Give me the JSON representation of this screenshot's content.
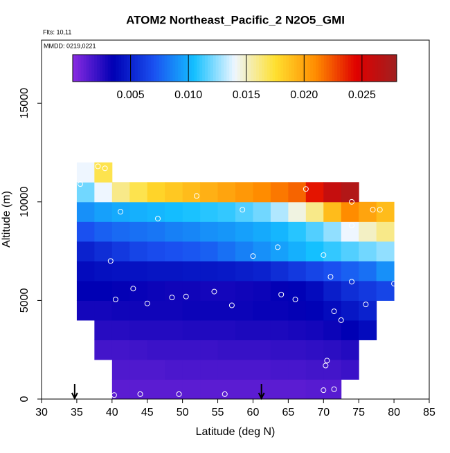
{
  "chart_data": {
    "type": "heatmap",
    "title": "ATOM2 Northeast_Pacific_2 N2O5_GMI",
    "flights_text": "Flts: 10,11",
    "dates_text": "MMDD: 0219,0221",
    "xlabel": "Latitude (deg N)",
    "ylabel": "Altitude (m)",
    "xlim": [
      30,
      85
    ],
    "ylim": [
      0,
      18200
    ],
    "xticks": [
      30,
      35,
      40,
      45,
      50,
      55,
      60,
      65,
      70,
      75,
      80,
      85
    ],
    "yticks": [
      0,
      5000,
      10000,
      15000
    ],
    "x": [
      36.25,
      38.75,
      41.25,
      43.75,
      46.25,
      48.75,
      51.25,
      53.75,
      56.25,
      58.75,
      61.25,
      63.75,
      66.25,
      68.75,
      71.25,
      73.75,
      76.25,
      78.75
    ],
    "y": [
      500,
      1500,
      2500,
      3500,
      4500,
      5500,
      6500,
      7500,
      8500,
      9500,
      10500,
      11500
    ],
    "z": [
      [
        null,
        null,
        0.0012,
        0.0012,
        0.0012,
        0.0012,
        0.0012,
        0.0012,
        0.0012,
        0.0012,
        0.0012,
        0.0012,
        0.0012,
        0.0013,
        0.0013,
        null,
        null,
        null
      ],
      [
        null,
        null,
        0.0015,
        0.0015,
        0.0015,
        0.0016,
        0.0016,
        0.0016,
        0.0016,
        0.0016,
        0.0016,
        0.0017,
        0.0017,
        0.0018,
        0.0018,
        0.002,
        null,
        null
      ],
      [
        null,
        0.0018,
        0.0018,
        0.0019,
        0.002,
        0.002,
        0.002,
        0.002,
        0.0021,
        0.0021,
        0.0021,
        0.0022,
        0.0022,
        0.0023,
        0.0024,
        0.0026,
        null,
        null
      ],
      [
        null,
        0.0025,
        0.0025,
        0.0026,
        0.0026,
        0.0026,
        0.0027,
        0.0027,
        0.0027,
        0.0028,
        0.0028,
        0.0028,
        0.0029,
        0.003,
        0.0032,
        0.0035,
        0.004,
        null
      ],
      [
        0.003,
        0.003,
        0.0031,
        0.0031,
        0.0031,
        0.0031,
        0.0032,
        0.0032,
        0.0032,
        0.0032,
        0.0033,
        0.0033,
        0.0034,
        0.0036,
        0.004,
        0.0045,
        0.005,
        null
      ],
      [
        0.0035,
        0.0035,
        0.0034,
        0.0033,
        0.0032,
        0.0031,
        0.0031,
        0.003,
        0.003,
        0.0031,
        0.0032,
        0.0034,
        0.0036,
        0.004,
        0.0048,
        0.0055,
        0.006,
        0.0065
      ],
      [
        0.004,
        0.0042,
        0.0043,
        0.0043,
        0.0044,
        0.0044,
        0.0045,
        0.0045,
        0.0046,
        0.0048,
        0.005,
        0.0055,
        0.006,
        0.0065,
        0.007,
        0.0075,
        0.008,
        0.009
      ],
      [
        0.005,
        0.0055,
        0.006,
        0.0065,
        0.0068,
        0.007,
        0.0072,
        0.0075,
        0.008,
        0.0085,
        0.009,
        0.0095,
        0.01,
        0.0105,
        0.011,
        0.0115,
        0.012,
        0.0125
      ],
      [
        0.007,
        0.0075,
        0.0078,
        0.008,
        0.0082,
        0.0085,
        0.0087,
        0.009,
        0.0092,
        0.0095,
        0.0098,
        0.0102,
        0.0108,
        0.0115,
        0.0125,
        0.014,
        0.015,
        0.016
      ],
      [
        0.009,
        0.0095,
        0.0098,
        0.01,
        0.0102,
        0.0104,
        0.0106,
        0.0108,
        0.011,
        0.0115,
        0.012,
        0.013,
        0.0145,
        0.016,
        0.019,
        0.021,
        0.02,
        0.019
      ],
      [
        0.012,
        0.014,
        0.016,
        0.017,
        0.018,
        0.0185,
        0.019,
        0.0195,
        0.02,
        0.0205,
        0.021,
        0.0215,
        0.022,
        0.024,
        0.026,
        0.027,
        null,
        null
      ],
      [
        0.014,
        0.017,
        null,
        null,
        null,
        null,
        null,
        null,
        null,
        null,
        null,
        null,
        null,
        null,
        null,
        null,
        null,
        null
      ]
    ],
    "zlim": [
      0,
      0.028
    ],
    "colorbar_ticks": [
      0.005,
      {
        "value": 0.01,
        "label": "0.010"
      },
      0.015,
      {
        "value": 0.02,
        "label": "0.020"
      },
      0.025
    ],
    "colormap": [
      "#8a2be2",
      "#0000b4",
      "#1a50f0",
      "#14c0ff",
      "#eef6ff",
      "#ffe030",
      "#ff8c00",
      "#e00000",
      "#a02020"
    ],
    "points": {
      "x": [
        35.5,
        38,
        39,
        41.2,
        46.5,
        52,
        58.5,
        67.5,
        74,
        77,
        78,
        74,
        63.5,
        60,
        70,
        39.8,
        43,
        40.5,
        45,
        48.5,
        50.5,
        54.5,
        57,
        64,
        66,
        71,
        74,
        80,
        76,
        71.5,
        72.5,
        70.5,
        70.3,
        40.3,
        44,
        49.5,
        56,
        70,
        71.5
      ],
      "y": [
        10900,
        11800,
        11700,
        9500,
        9150,
        10300,
        9600,
        10650,
        10000,
        9600,
        9600,
        8800,
        7700,
        7250,
        7300,
        7000,
        5600,
        5050,
        4850,
        5150,
        5200,
        5450,
        4750,
        5300,
        5050,
        6200,
        5950,
        5850,
        4800,
        4450,
        4000,
        1950,
        1700,
        200,
        250,
        250,
        250,
        450,
        500
      ]
    },
    "arrows_x": [
      34.7,
      61.2
    ]
  }
}
